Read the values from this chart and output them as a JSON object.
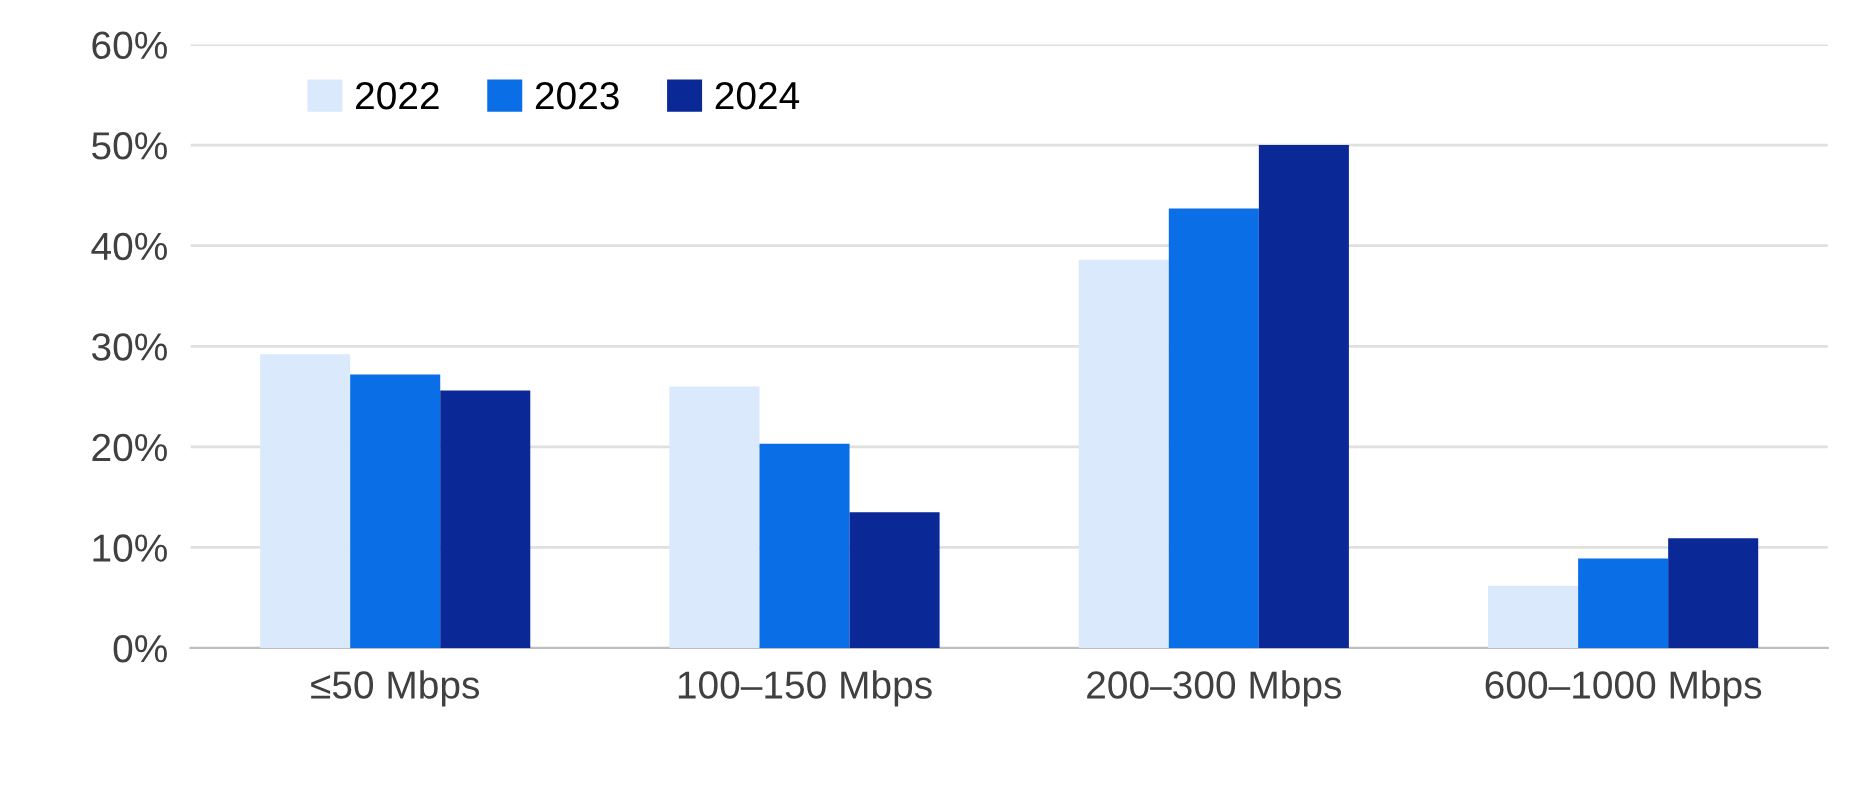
{
  "chart_data": {
    "type": "bar",
    "categories": [
      "≤50 Mbps",
      "100–150 Mbps",
      "200–300 Mbps",
      "600–1000 Mbps"
    ],
    "series": [
      {
        "name": "2022",
        "color": "#dae9fb",
        "values": [
          29.2,
          26.0,
          38.6,
          6.2
        ]
      },
      {
        "name": "2023",
        "color": "#0a6ee6",
        "values": [
          27.2,
          20.3,
          43.7,
          8.9
        ]
      },
      {
        "name": "2024",
        "color": "#0a2896",
        "values": [
          25.6,
          13.5,
          50.0,
          10.9
        ]
      }
    ],
    "ylim": [
      0,
      60
    ],
    "yticks": [
      {
        "value": 0,
        "label": "0%"
      },
      {
        "value": 10,
        "label": "10%"
      },
      {
        "value": 20,
        "label": "20%"
      },
      {
        "value": 30,
        "label": "30%"
      },
      {
        "value": 40,
        "label": "40%"
      },
      {
        "value": 50,
        "label": "50%"
      },
      {
        "value": 60,
        "label": "60%"
      }
    ],
    "grid": "y",
    "legend": "top left"
  }
}
